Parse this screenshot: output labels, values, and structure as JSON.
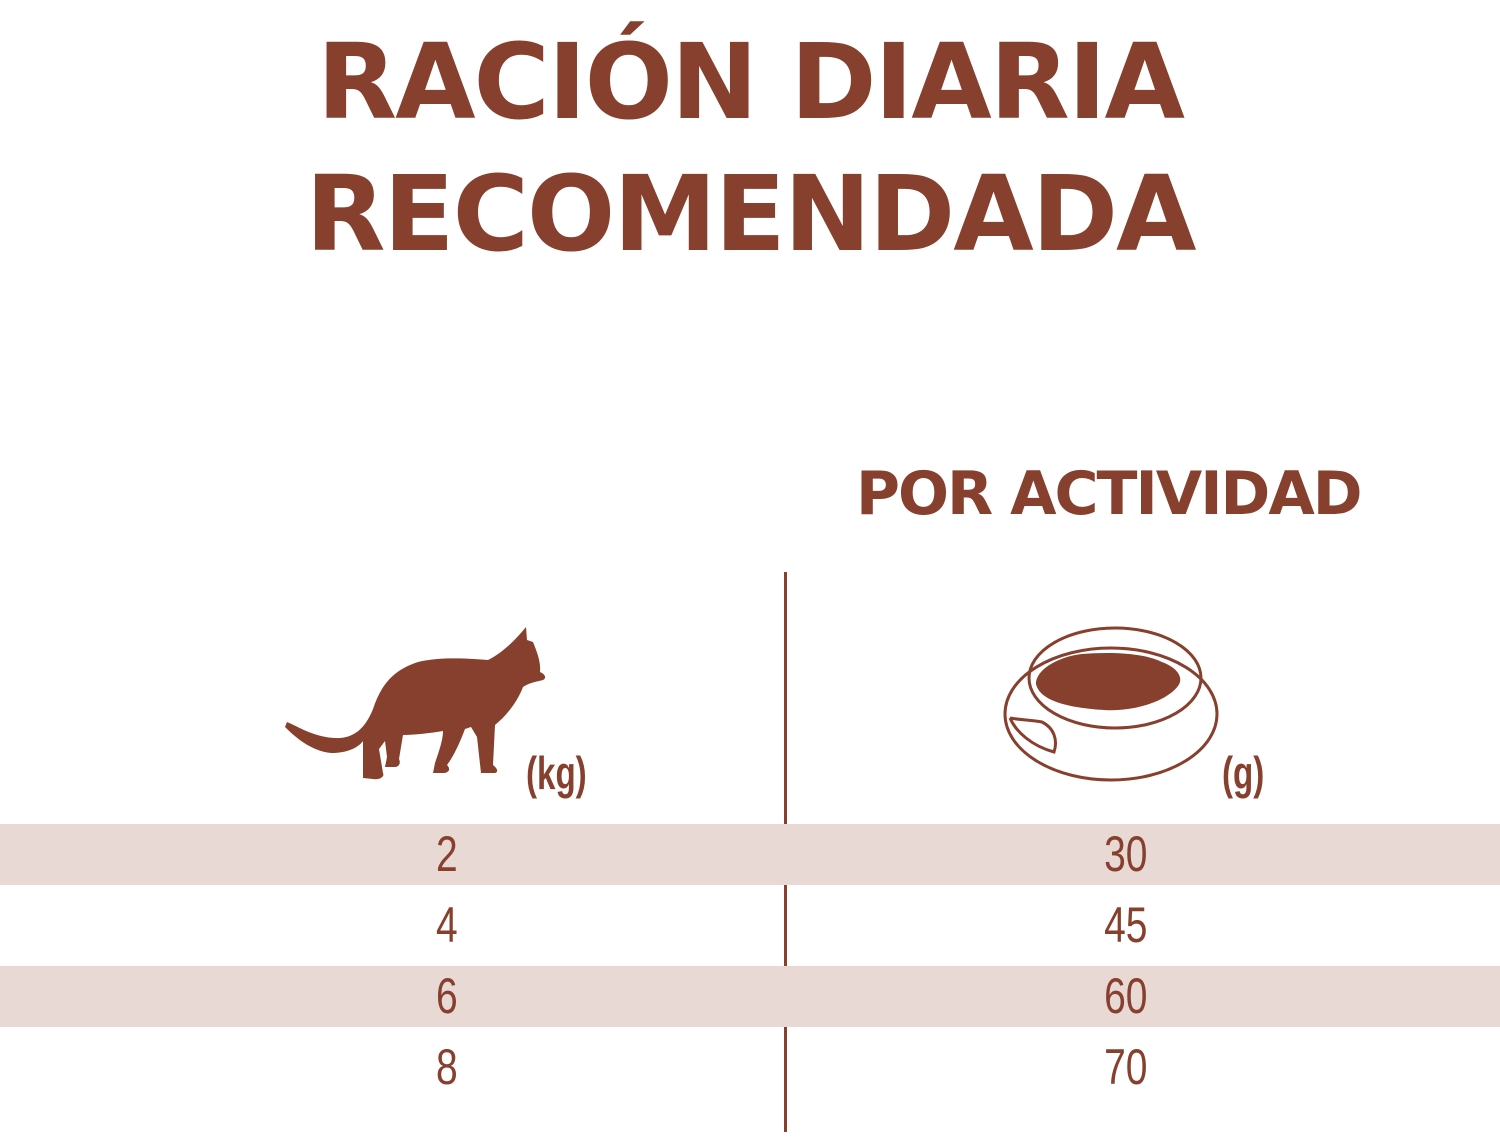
{
  "title": {
    "line1": "RACIÓN DIARIA",
    "line2": "RECOMENDADA"
  },
  "activity_heading": "POR ACTIVIDAD",
  "columns": {
    "weight": {
      "icon": "cat-icon",
      "unit": "(kg)"
    },
    "portion": {
      "icon": "food-bowl-icon",
      "unit": "(g)"
    }
  },
  "rows": [
    {
      "weight": "2",
      "grams": "30"
    },
    {
      "weight": "4",
      "grams": "45"
    },
    {
      "weight": "6",
      "grams": "60"
    },
    {
      "weight": "8",
      "grams": "70"
    }
  ],
  "colors": {
    "brand_brown": "#86402d",
    "row_shade": "#e9d9d4",
    "background": "#ffffff"
  }
}
